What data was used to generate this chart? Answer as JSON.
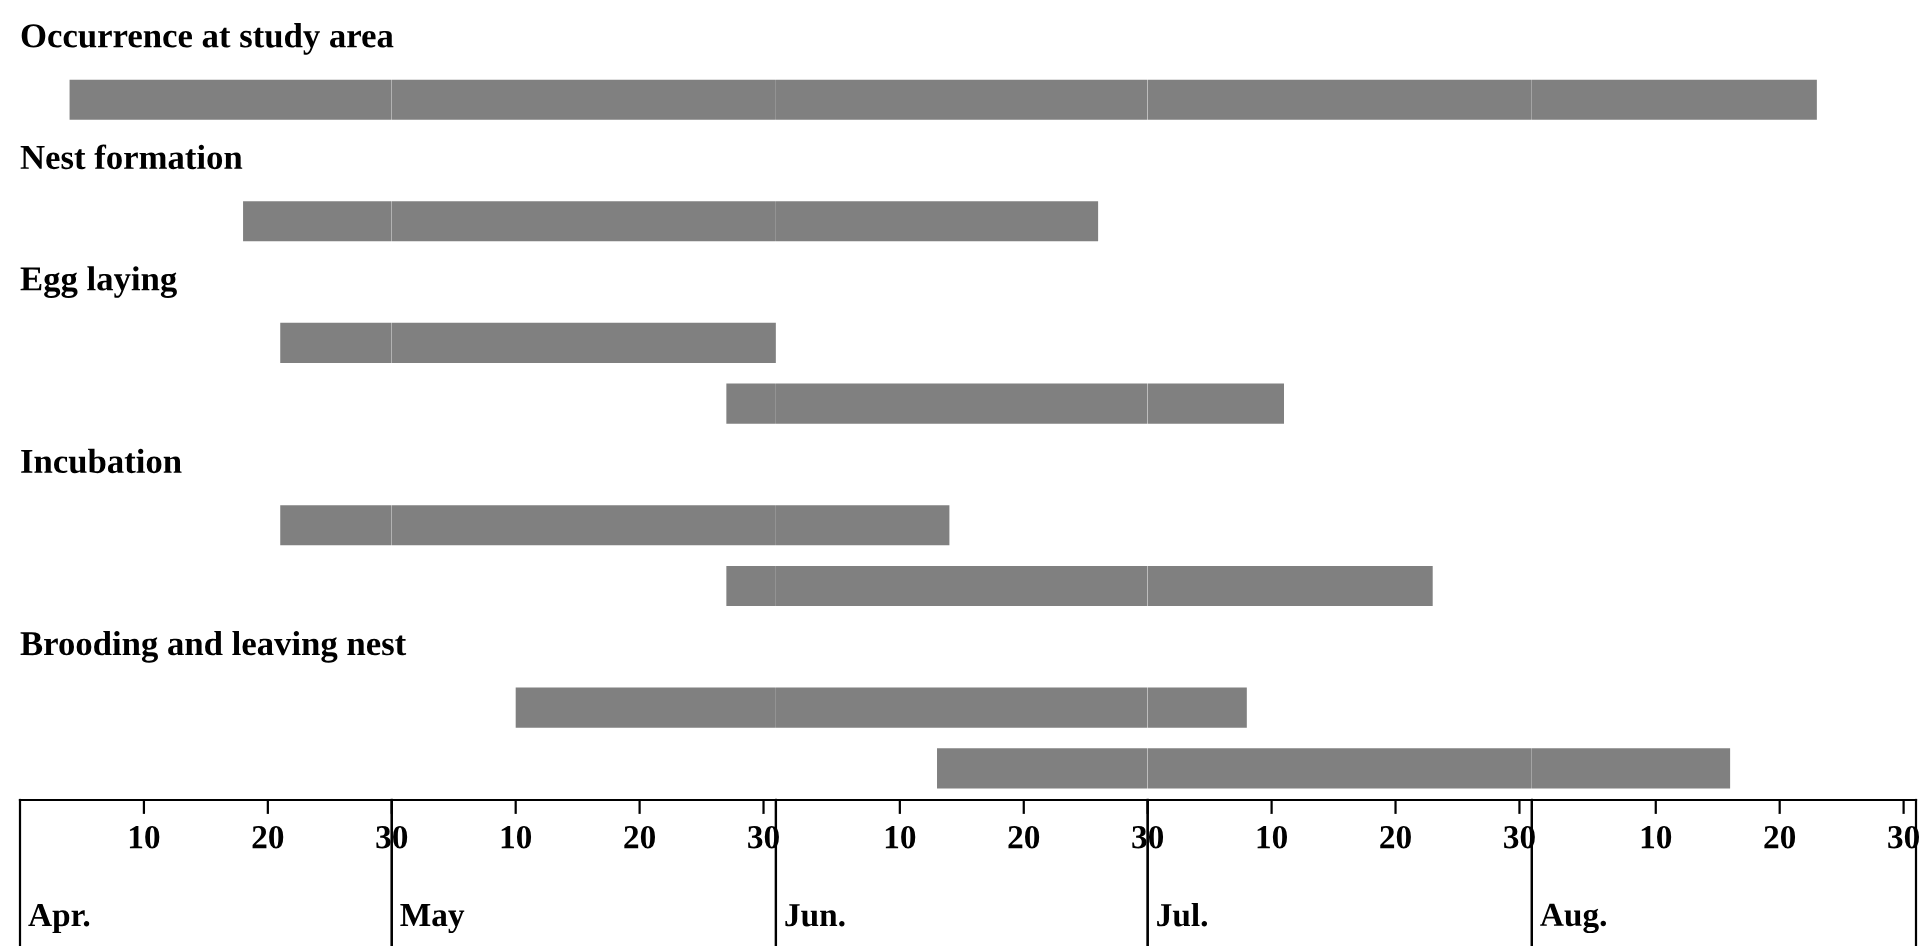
{
  "chart_data": [
    {
      "type": "bar",
      "orientation": "horizontal",
      "xlabel": "Apr.",
      "categories": [
        "Occurrence at study area",
        "Nest formation",
        "Egg laying",
        null,
        "Incubation",
        null,
        "Brooding and leaving nest",
        null
      ],
      "base": [
        4,
        18,
        21,
        null,
        21,
        null,
        null,
        null
      ],
      "values": [
        26,
        12,
        9,
        null,
        9,
        null,
        null,
        null
      ],
      "color": "#808080",
      "xlim": [
        0,
        30
      ],
      "xticks": [
        10,
        20,
        30
      ]
    },
    {
      "type": "bar",
      "orientation": "horizontal",
      "xlabel": "May",
      "categories": [
        null,
        null,
        null,
        null,
        null,
        null,
        null,
        null
      ],
      "base": [
        0,
        0,
        0,
        27,
        0,
        27,
        10,
        null
      ],
      "values": [
        31,
        31,
        31,
        4,
        31,
        4,
        21,
        null
      ],
      "color": "#808080",
      "xlim": [
        0,
        31
      ],
      "xticks": [
        10,
        20,
        30
      ]
    },
    {
      "type": "bar",
      "orientation": "horizontal",
      "xlabel": "Jun.",
      "categories": [
        null,
        null,
        null,
        null,
        null,
        null,
        null,
        null
      ],
      "base": [
        0,
        0,
        null,
        0,
        0,
        0,
        0,
        13
      ],
      "values": [
        30,
        26,
        null,
        30,
        14,
        30,
        30,
        17
      ],
      "color": "#808080",
      "xlim": [
        0,
        30
      ],
      "xticks": [
        10,
        20,
        30
      ]
    },
    {
      "type": "bar",
      "orientation": "horizontal",
      "xlabel": "Jul.",
      "categories": [
        null,
        null,
        null,
        null,
        null,
        null,
        null,
        null
      ],
      "base": [
        0,
        null,
        null,
        0,
        null,
        0,
        0,
        0
      ],
      "values": [
        31,
        null,
        null,
        11,
        null,
        23,
        8,
        31
      ],
      "color": "#808080",
      "xlim": [
        0,
        31
      ],
      "xticks": [
        10,
        20,
        30
      ]
    },
    {
      "type": "bar",
      "orientation": "horizontal",
      "xlabel": "Aug.",
      "categories": [
        null,
        null,
        null,
        null,
        null,
        null,
        null,
        null
      ],
      "base": [
        0,
        null,
        null,
        null,
        null,
        null,
        null,
        0
      ],
      "values": [
        23,
        null,
        null,
        null,
        null,
        null,
        null,
        16
      ],
      "color": "#808080",
      "xlim": [
        0,
        31
      ],
      "xticks": [
        10,
        20,
        30
      ]
    }
  ]
}
